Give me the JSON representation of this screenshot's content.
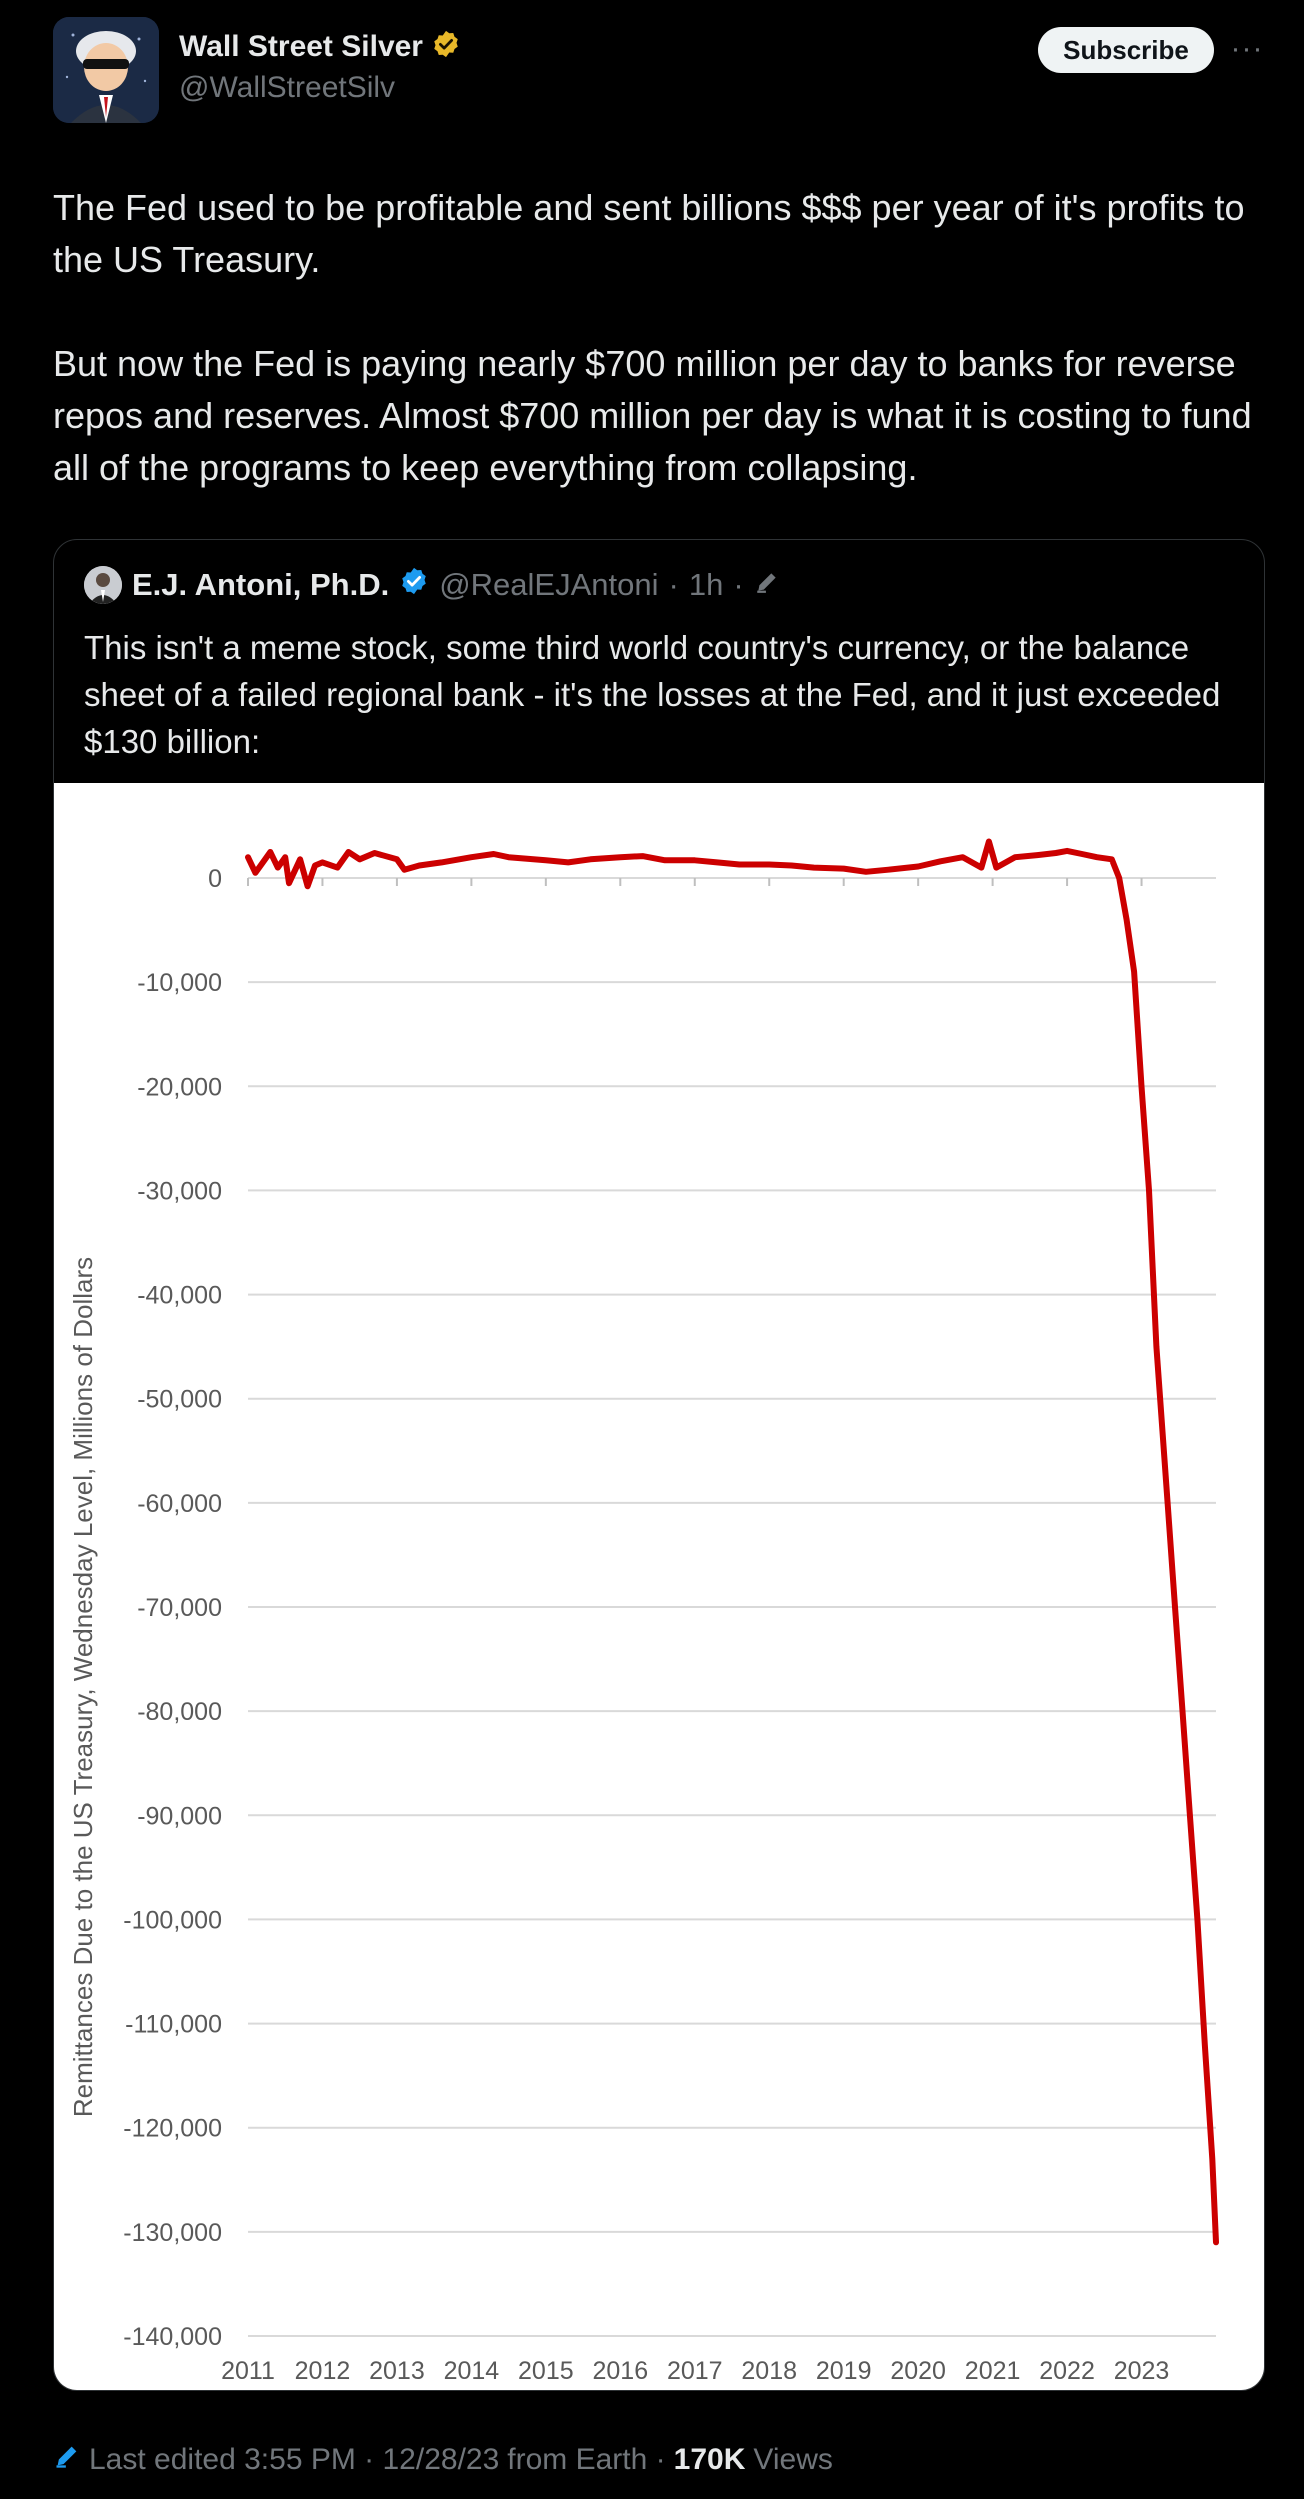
{
  "author": {
    "display_name": "Wall Street Silver",
    "handle": "@WallStreetSilv",
    "subscribe_label": "Subscribe",
    "more_label": "···"
  },
  "tweet": {
    "paragraph1": "The Fed used to be profitable and sent billions $$$ per year of it's profits to the US Treasury.",
    "paragraph2": "But now the Fed is paying nearly $700 million per day to banks for reverse repos and reserves. Almost $700 million per day is what it is costing to fund all of the programs to keep everything from collapsing."
  },
  "quote": {
    "display_name": "E.J. Antoni, Ph.D.",
    "handle": "@RealEJAntoni",
    "sep1": "·",
    "time": "1h",
    "sep2": "·",
    "text": "This isn't a meme stock, some third world country's currency, or the balance sheet of a failed regional bank - it's the losses at the Fed, and it just exceeded $130 billion:"
  },
  "footer": {
    "edited": "Last edited 3:55 PM · 12/28/23",
    "from": "from Earth ·",
    "views_count": "170K",
    "views_label": "Views"
  },
  "colors": {
    "verified_gold": "#e8b829",
    "verified_blue": "#1d9bf0",
    "line": "#cc0000",
    "grid": "#d9d9d9"
  },
  "chart_data": {
    "type": "line",
    "title": "",
    "xlabel": "",
    "ylabel": "Remittances Due to the US Treasury, Wednesday Level, Millions of Dollars",
    "xlim": [
      2011,
      2024
    ],
    "ylim": [
      -140000,
      0
    ],
    "yticks": [
      0,
      -10000,
      -20000,
      -30000,
      -40000,
      -50000,
      -60000,
      -70000,
      -80000,
      -90000,
      -100000,
      -110000,
      -120000,
      -130000,
      -140000
    ],
    "ytick_labels": [
      "0",
      "-10,000",
      "-20,000",
      "-30,000",
      "-40,000",
      "-50,000",
      "-60,000",
      "-70,000",
      "-80,000",
      "-90,000",
      "-100,000",
      "-110,000",
      "-120,000",
      "-130,000",
      "-140,000"
    ],
    "xtick_labels": [
      "2011",
      "2012",
      "2013",
      "2014",
      "2015",
      "2016",
      "2017",
      "2018",
      "2019",
      "2020",
      "2021",
      "2022",
      "2023"
    ],
    "grid": true,
    "series": [
      {
        "values": [
          [
            2011.0,
            2000
          ],
          [
            2011.1,
            500
          ],
          [
            2011.2,
            1500
          ],
          [
            2011.3,
            2500
          ],
          [
            2011.4,
            1000
          ],
          [
            2011.5,
            2000
          ],
          [
            2011.55,
            -500
          ],
          [
            2011.7,
            1800
          ],
          [
            2011.8,
            -800
          ],
          [
            2011.9,
            1200
          ],
          [
            2012.0,
            1500
          ],
          [
            2012.2,
            1000
          ],
          [
            2012.35,
            2500
          ],
          [
            2012.5,
            1800
          ],
          [
            2012.7,
            2400
          ],
          [
            2013.0,
            1800
          ],
          [
            2013.1,
            800
          ],
          [
            2013.3,
            1200
          ],
          [
            2013.6,
            1500
          ],
          [
            2014.0,
            2000
          ],
          [
            2014.3,
            2300
          ],
          [
            2014.5,
            2000
          ],
          [
            2015.0,
            1700
          ],
          [
            2015.3,
            1500
          ],
          [
            2015.6,
            1800
          ],
          [
            2016.0,
            2000
          ],
          [
            2016.3,
            2100
          ],
          [
            2016.6,
            1700
          ],
          [
            2017.0,
            1700
          ],
          [
            2017.3,
            1500
          ],
          [
            2017.6,
            1300
          ],
          [
            2018.0,
            1300
          ],
          [
            2018.3,
            1200
          ],
          [
            2018.6,
            1000
          ],
          [
            2019.0,
            900
          ],
          [
            2019.3,
            600
          ],
          [
            2019.6,
            800
          ],
          [
            2020.0,
            1100
          ],
          [
            2020.3,
            1600
          ],
          [
            2020.6,
            2000
          ],
          [
            2020.85,
            1000
          ],
          [
            2020.95,
            3500
          ],
          [
            2021.05,
            1000
          ],
          [
            2021.3,
            2000
          ],
          [
            2021.6,
            2200
          ],
          [
            2021.85,
            2400
          ],
          [
            2022.0,
            2600
          ],
          [
            2022.2,
            2300
          ],
          [
            2022.4,
            2000
          ],
          [
            2022.6,
            1800
          ],
          [
            2022.7,
            0
          ],
          [
            2022.8,
            -4000
          ],
          [
            2022.9,
            -9000
          ],
          [
            2023.0,
            -20000
          ],
          [
            2023.1,
            -30000
          ],
          [
            2023.2,
            -45000
          ],
          [
            2023.35,
            -60000
          ],
          [
            2023.45,
            -70000
          ],
          [
            2023.55,
            -80000
          ],
          [
            2023.65,
            -90000
          ],
          [
            2023.75,
            -100000
          ],
          [
            2023.85,
            -112000
          ],
          [
            2023.95,
            -123000
          ],
          [
            2024.0,
            -131000
          ]
        ]
      }
    ]
  }
}
